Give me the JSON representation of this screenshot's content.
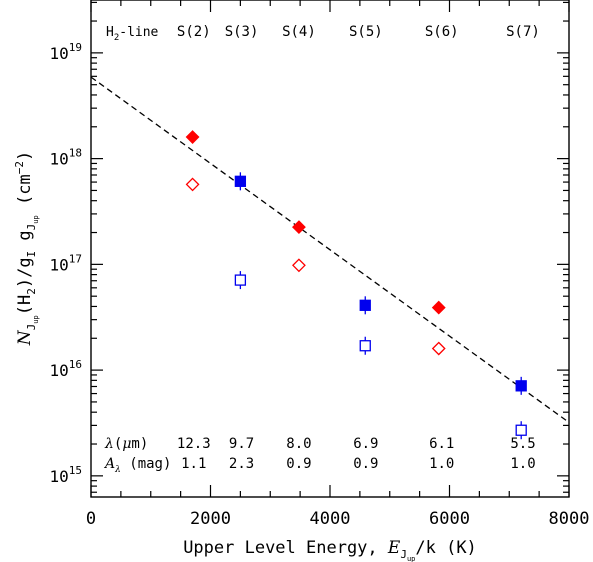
{
  "chart_data": {
    "type": "scatter",
    "x_range": [
      0,
      8000
    ],
    "y_range_log10": [
      14.8,
      19.5
    ],
    "y_scale": "log",
    "grid": false,
    "legend": "none",
    "xlabel": {
      "prefix": "Upper Level Energy, ",
      "var": "E",
      "sub": "J",
      "subsub": "up",
      "suffix": "/k (K)"
    },
    "ylabel": {
      "var": "N",
      "sub": "J",
      "subsub": "up",
      "mid": "(H",
      "mid_sub": "2",
      "mid2": ")/g",
      "g1_sub": "I",
      "g2": " g",
      "g2_sub": "J",
      "g2_subsub": "up",
      "units": "(cm",
      "units_exp": "−2",
      "units_end": ")"
    },
    "x_ticks": [
      {
        "value": 0,
        "label": "0"
      },
      {
        "value": 2000,
        "label": "2000"
      },
      {
        "value": 4000,
        "label": "4000"
      },
      {
        "value": 6000,
        "label": "6000"
      },
      {
        "value": 8000,
        "label": "8000"
      }
    ],
    "y_ticks": [
      {
        "exp": 15,
        "base": "10",
        "exp_label": "15"
      },
      {
        "exp": 16,
        "base": "10",
        "exp_label": "16"
      },
      {
        "exp": 17,
        "base": "10",
        "exp_label": "17"
      },
      {
        "exp": 18,
        "base": "10",
        "exp_label": "18"
      },
      {
        "exp": 19,
        "base": "10",
        "exp_label": "19"
      }
    ],
    "series": [
      {
        "marker": "diamond-filled",
        "color": "#ff0000",
        "points": [
          {
            "x": 1700,
            "y": 1.6e+18
          },
          {
            "x": 3480,
            "y": 2.25e+17
          },
          {
            "x": 5820,
            "y": 3.9e+16
          }
        ]
      },
      {
        "marker": "diamond-open",
        "color": "#ff0000",
        "points": [
          {
            "x": 1700,
            "y": 5.7e+17
          },
          {
            "x": 3480,
            "y": 9.8e+16
          },
          {
            "x": 5820,
            "y": 1.6e+16
          }
        ]
      },
      {
        "marker": "square-filled",
        "color": "#0000ee",
        "points": [
          {
            "x": 2500,
            "y": 6.1e+17
          },
          {
            "x": 4590,
            "y": 4.1e+16
          },
          {
            "x": 7200,
            "y": 7100000000000000.0
          }
        ]
      },
      {
        "marker": "square-open",
        "color": "#0000ee",
        "points": [
          {
            "x": 2500,
            "y": 7.1e+16
          },
          {
            "x": 4590,
            "y": 1.7e+16
          },
          {
            "x": 7200,
            "y": 2700000000000000.0
          }
        ]
      }
    ],
    "fit_line": {
      "style": "dashed",
      "color": "#000000",
      "x": [
        0,
        8000
      ],
      "y": [
        5.9e+18,
        3200000000000000.0
      ]
    },
    "annotations": {
      "line_header": {
        "text": "H",
        "sub": "2",
        "rest": "-line"
      },
      "lines": [
        {
          "label": "S(2)",
          "x": 1720,
          "lambda": "12.3",
          "A": "1.1"
        },
        {
          "label": "S(3)",
          "x": 2520,
          "lambda": "9.7",
          "A": "2.3"
        },
        {
          "label": "S(4)",
          "x": 3480,
          "lambda": "8.0",
          "A": "0.9"
        },
        {
          "label": "S(5)",
          "x": 4600,
          "lambda": "6.9",
          "A": "0.9"
        },
        {
          "label": "S(6)",
          "x": 5870,
          "lambda": "6.1",
          "A": "1.0"
        },
        {
          "label": "S(7)",
          "x": 7230,
          "lambda": "5.5",
          "A": "1.0"
        }
      ],
      "lambda_label": {
        "sym": "λ",
        "unit_open": "(",
        "unit_mu": "μ",
        "unit_close": "m)"
      },
      "A_label": {
        "sym": "A",
        "sub": "λ",
        "unit": " (mag)"
      }
    }
  }
}
